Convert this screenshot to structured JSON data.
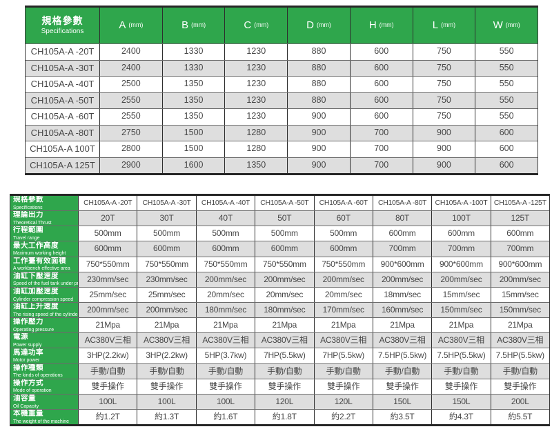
{
  "colors": {
    "header_green": "#2fa64c",
    "stripe_gray": "#dedede",
    "border_dark": "#2e2e2e",
    "text_dark": "#474747",
    "header_text": "#ffffff"
  },
  "top_table": {
    "corner": {
      "zh": "規格參數",
      "en": "Specifications"
    },
    "columns": [
      {
        "letter": "A",
        "unit": "(mm)"
      },
      {
        "letter": "B",
        "unit": "(mm)"
      },
      {
        "letter": "C",
        "unit": "(mm)"
      },
      {
        "letter": "D",
        "unit": "(mm)"
      },
      {
        "letter": "H",
        "unit": "(mm)"
      },
      {
        "letter": "L",
        "unit": "(mm)"
      },
      {
        "letter": "W",
        "unit": "(mm)"
      }
    ],
    "rows": [
      {
        "model": "CH105A-A -20T",
        "values": [
          "2400",
          "1330",
          "1230",
          "880",
          "600",
          "750",
          "550"
        ]
      },
      {
        "model": "CH105A-A -30T",
        "values": [
          "2400",
          "1330",
          "1230",
          "880",
          "600",
          "750",
          "550"
        ]
      },
      {
        "model": "CH105A-A -40T",
        "values": [
          "2500",
          "1350",
          "1230",
          "880",
          "600",
          "750",
          "550"
        ]
      },
      {
        "model": "CH105A-A -50T",
        "values": [
          "2550",
          "1350",
          "1230",
          "880",
          "600",
          "750",
          "550"
        ]
      },
      {
        "model": "CH105A-A -60T",
        "values": [
          "2550",
          "1350",
          "1230",
          "900",
          "600",
          "750",
          "550"
        ]
      },
      {
        "model": "CH105A-A -80T",
        "values": [
          "2750",
          "1500",
          "1280",
          "900",
          "700",
          "900",
          "600"
        ]
      },
      {
        "model": "CH105A-A 100T",
        "values": [
          "2800",
          "1500",
          "1280",
          "900",
          "700",
          "900",
          "600"
        ]
      },
      {
        "model": "CH105A-A 125T",
        "values": [
          "2900",
          "1600",
          "1350",
          "900",
          "700",
          "900",
          "600"
        ]
      }
    ]
  },
  "bottom_table": {
    "corner": {
      "zh": "規格參數",
      "en": "Specifications"
    },
    "models": [
      "CH105A-A -20T",
      "CH105A-A -30T",
      "CH105A-A -40T",
      "CH105A-A -50T",
      "CH105A-A -60T",
      "CH105A-A -80T",
      "CH105A-A -100T",
      "CH105A-A -125T"
    ],
    "rows": [
      {
        "zh": "理論出力",
        "en": "Theoretical Thrust",
        "values": [
          "20T",
          "30T",
          "40T",
          "50T",
          "60T",
          "80T",
          "100T",
          "125T"
        ]
      },
      {
        "zh": "行程範圍",
        "en": "Travel range",
        "values": [
          "500mm",
          "500mm",
          "500mm",
          "500mm",
          "500mm",
          "600mm",
          "600mm",
          "600mm"
        ]
      },
      {
        "zh": "最大工作高度",
        "en": "Maximum working height",
        "values": [
          "600mm",
          "600mm",
          "600mm",
          "600mm",
          "600mm",
          "700mm",
          "700mm",
          "700mm"
        ]
      },
      {
        "zh": "工作臺有效面積",
        "en": "A workbench effective area",
        "values": [
          "750*550mm",
          "750*550mm",
          "750*550mm",
          "750*550mm",
          "750*550mm",
          "900*600mm",
          "900*600mm",
          "900*600mm"
        ]
      },
      {
        "zh": "油缸下壓速度",
        "en": "Speed of the fuel tank under pressure",
        "values": [
          "230mm/sec",
          "230mm/sec",
          "200mm/sec",
          "200mm/sec",
          "200mm/sec",
          "200mm/sec",
          "200mm/sec",
          "200mm/sec"
        ]
      },
      {
        "zh": "油缸加壓速度",
        "en": "Cylinder compression speed",
        "values": [
          "25mm/sec",
          "25mm/sec",
          "20mm/sec",
          "20mm/sec",
          "20mm/sec",
          "18mm/sec",
          "15mm/sec",
          "15mm/sec"
        ]
      },
      {
        "zh": "油缸上升速度",
        "en": "The rising speed of the cylinder",
        "values": [
          "200mm/sec",
          "200mm/sec",
          "180mm/sec",
          "180mm/sec",
          "170mm/sec",
          "160mm/sec",
          "150mm/sec",
          "150mm/sec"
        ]
      },
      {
        "zh": "操作壓力",
        "en": "Operating pressure",
        "values": [
          "21Mpa",
          "21Mpa",
          "21Mpa",
          "21Mpa",
          "21Mpa",
          "21Mpa",
          "21Mpa",
          "21Mpa"
        ]
      },
      {
        "zh": "電源",
        "en": "Power supply",
        "values": [
          "AC380V三相",
          "AC380V三相",
          "AC380V三相",
          "AC380V三相",
          "AC380V三相",
          "AC380V三相",
          "AC380V三相",
          "AC380V三相"
        ]
      },
      {
        "zh": "馬達功率",
        "en": "Motor power",
        "values": [
          "3HP(2.2kw)",
          "3HP(2.2kw)",
          "5HP(3.7kw)",
          "7HP(5.5kw)",
          "7HP(5.5kw)",
          "7.5HP(5.5kw)",
          "7.5HP(5.5kw)",
          "7.5HP(5.5kw)"
        ]
      },
      {
        "zh": "操作種類",
        "en": "The kinds of operations",
        "values": [
          "手動/自動",
          "手動/自動",
          "手動/自動",
          "手動/自動",
          "手動/自動",
          "手動/自動",
          "手動/自動",
          "手動/自動"
        ]
      },
      {
        "zh": "操作方式",
        "en": "Mode of operation",
        "values": [
          "雙手操作",
          "雙手操作",
          "雙手操作",
          "雙手操作",
          "雙手操作",
          "雙手操作",
          "雙手操作",
          "雙手操作"
        ]
      },
      {
        "zh": "油容量",
        "en": "Oil Capacity",
        "values": [
          "100L",
          "100L",
          "100L",
          "120L",
          "120L",
          "150L",
          "150L",
          "200L"
        ]
      },
      {
        "zh": "本機重量",
        "en": "The weight of the machine",
        "values": [
          "約1.2T",
          "約1.3T",
          "約1.6T",
          "約1.8T",
          "約2.2T",
          "約3.5T",
          "約4.3T",
          "約5.5T"
        ]
      }
    ]
  }
}
